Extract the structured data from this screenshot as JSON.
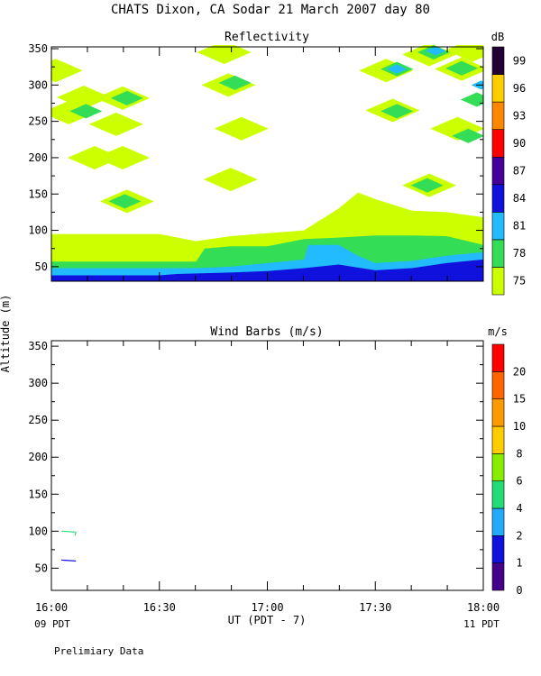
{
  "page": {
    "title": "CHATS Dixon, CA   Sodar  21 March 2007   day  80",
    "ylabel": "Altitude (m)",
    "xlabel": "UT  (PDT - 7)",
    "x_local_left": "09 PDT",
    "x_local_right": "11 PDT",
    "footnote": "Prelimiary Data"
  },
  "chart_data": [
    {
      "type": "heatmap",
      "title": "Reflectivity",
      "colorbar_unit": "dB",
      "colorbar_levels": [
        "75",
        "78",
        "81",
        "84",
        "87",
        "90",
        "93",
        "96",
        "99"
      ],
      "colorbar_colors": [
        "#ccff00",
        "#33dd55",
        "#22bbff",
        "#1111dd",
        "#440099",
        "#ff0000",
        "#ff8800",
        "#ffcc00",
        "#220033"
      ],
      "x_ticks": [
        "16:00",
        "16:30",
        "17:00",
        "17:30",
        "18:00"
      ],
      "xlim_hours": [
        16.0,
        18.0
      ],
      "y_ticks": [
        "50",
        "100",
        "150",
        "200",
        "250",
        "300",
        "350"
      ],
      "ylim_m": [
        30,
        350
      ],
      "bands": [
        {
          "level": "75",
          "top": [
            [
              16.0,
              95
            ],
            [
              16.33,
              95
            ],
            [
              16.5,
              95
            ],
            [
              16.67,
              85
            ],
            [
              16.83,
              92
            ],
            [
              17.0,
              96
            ],
            [
              17.17,
              100
            ],
            [
              17.33,
              130
            ],
            [
              17.42,
              152
            ],
            [
              17.5,
              143
            ],
            [
              17.67,
              127
            ],
            [
              17.83,
              125
            ],
            [
              18.0,
              118
            ]
          ]
        },
        {
          "level": "78",
          "top": [
            [
              16.0,
              57
            ],
            [
              16.33,
              57
            ],
            [
              16.67,
              57
            ],
            [
              16.71,
              75
            ],
            [
              16.83,
              78
            ],
            [
              17.0,
              78
            ],
            [
              17.17,
              88
            ],
            [
              17.33,
              90
            ],
            [
              17.5,
              93
            ],
            [
              17.67,
              93
            ],
            [
              17.83,
              92
            ],
            [
              18.0,
              80
            ]
          ]
        },
        {
          "level": "81",
          "top": [
            [
              16.0,
              48
            ],
            [
              16.33,
              48
            ],
            [
              16.67,
              48
            ],
            [
              16.83,
              50
            ],
            [
              17.0,
              55
            ],
            [
              17.17,
              60
            ],
            [
              17.19,
              80
            ],
            [
              17.33,
              80
            ],
            [
              17.42,
              65
            ],
            [
              17.5,
              55
            ],
            [
              17.67,
              58
            ],
            [
              17.83,
              65
            ],
            [
              18.0,
              70
            ]
          ]
        },
        {
          "level": "84",
          "top": [
            [
              16.0,
              38
            ],
            [
              16.5,
              38
            ],
            [
              16.58,
              40
            ],
            [
              16.83,
              42
            ],
            [
              17.0,
              44
            ],
            [
              17.17,
              48
            ],
            [
              17.33,
              53
            ],
            [
              17.5,
              45
            ],
            [
              17.67,
              48
            ],
            [
              17.83,
              55
            ],
            [
              18.0,
              60
            ]
          ]
        }
      ],
      "blobs": [
        {
          "level": "75",
          "x": 16.02,
          "y": 320
        },
        {
          "level": "75",
          "x": 16.15,
          "y": 283
        },
        {
          "level": "75",
          "x": 16.08,
          "y": 262
        },
        {
          "level": "78",
          "x": 16.16,
          "y": 264
        },
        {
          "level": "75",
          "x": 16.33,
          "y": 282
        },
        {
          "level": "78",
          "x": 16.35,
          "y": 282
        },
        {
          "level": "75",
          "x": 16.3,
          "y": 246
        },
        {
          "level": "75",
          "x": 16.2,
          "y": 200
        },
        {
          "level": "75",
          "x": 16.33,
          "y": 200
        },
        {
          "level": "75",
          "x": 16.35,
          "y": 140
        },
        {
          "level": "78",
          "x": 16.34,
          "y": 140
        },
        {
          "level": "75",
          "x": 16.8,
          "y": 345
        },
        {
          "level": "75",
          "x": 16.82,
          "y": 300
        },
        {
          "level": "78",
          "x": 16.85,
          "y": 303
        },
        {
          "level": "75",
          "x": 16.88,
          "y": 240
        },
        {
          "level": "75",
          "x": 16.83,
          "y": 170
        },
        {
          "level": "75",
          "x": 17.55,
          "y": 320
        },
        {
          "level": "78",
          "x": 17.6,
          "y": 322
        },
        {
          "level": "81",
          "x": 17.6,
          "y": 322
        },
        {
          "level": "75",
          "x": 17.58,
          "y": 265
        },
        {
          "level": "78",
          "x": 17.6,
          "y": 264
        },
        {
          "level": "75",
          "x": 17.75,
          "y": 342
        },
        {
          "level": "78",
          "x": 17.77,
          "y": 345
        },
        {
          "level": "81",
          "x": 17.78,
          "y": 347
        },
        {
          "level": "75",
          "x": 17.9,
          "y": 322
        },
        {
          "level": "78",
          "x": 17.9,
          "y": 323
        },
        {
          "level": "75",
          "x": 17.95,
          "y": 348
        },
        {
          "level": "75",
          "x": 17.75,
          "y": 162
        },
        {
          "level": "78",
          "x": 17.74,
          "y": 162
        },
        {
          "level": "75",
          "x": 17.88,
          "y": 240
        },
        {
          "level": "78",
          "x": 17.93,
          "y": 230
        },
        {
          "level": "78",
          "x": 17.97,
          "y": 280
        },
        {
          "level": "81",
          "x": 17.99,
          "y": 300
        }
      ]
    },
    {
      "type": "scatter",
      "title": "Wind Barbs (m/s)",
      "colorbar_unit": "m/s",
      "colorbar_levels": [
        "0",
        "1",
        "2",
        "4",
        "6",
        "8",
        "10",
        "15",
        "20"
      ],
      "colorbar_colors": [
        "#440088",
        "#1111dd",
        "#22aaff",
        "#22dd77",
        "#88ee00",
        "#ffcc00",
        "#ff9900",
        "#ff6600",
        "#ff0000"
      ],
      "x_ticks": [
        "16:00",
        "16:30",
        "17:00",
        "17:30",
        "18:00"
      ],
      "xlim_hours": [
        16.0,
        18.0
      ],
      "y_ticks": [
        "50",
        "100",
        "150",
        "200",
        "250",
        "300",
        "350"
      ],
      "ylim_m": [
        20,
        355
      ],
      "barbs": [
        {
          "x": 16.08,
          "y": 100,
          "speed": 4,
          "color": "#22dd77"
        },
        {
          "x": 16.08,
          "y": 61,
          "speed": 1,
          "color": "#1111dd"
        }
      ]
    }
  ]
}
